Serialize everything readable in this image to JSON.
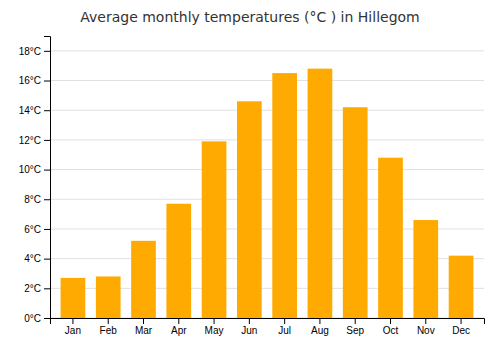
{
  "chart_data": {
    "type": "bar",
    "title": "Average monthly temperatures (°C ) in Hillegom",
    "categories": [
      "Jan",
      "Feb",
      "Mar",
      "Apr",
      "May",
      "Jun",
      "Jul",
      "Aug",
      "Sep",
      "Oct",
      "Nov",
      "Dec"
    ],
    "values": [
      2.7,
      2.8,
      5.2,
      7.7,
      11.9,
      14.6,
      16.5,
      16.8,
      14.2,
      10.8,
      6.6,
      4.2
    ],
    "color": "#FFAA00",
    "ylim": [
      0,
      19
    ],
    "yticks": [
      {
        "value": 0,
        "label": "0°C"
      },
      {
        "value": 2,
        "label": "2°C"
      },
      {
        "value": 4,
        "label": "4°C"
      },
      {
        "value": 6,
        "label": "6°C"
      },
      {
        "value": 8,
        "label": "8°C"
      },
      {
        "value": 10,
        "label": "10°C"
      },
      {
        "value": 12,
        "label": "12°C"
      },
      {
        "value": 14,
        "label": "14°C"
      },
      {
        "value": 16,
        "label": "16°C"
      },
      {
        "value": 18,
        "label": "18°C"
      }
    ],
    "grid": true
  }
}
